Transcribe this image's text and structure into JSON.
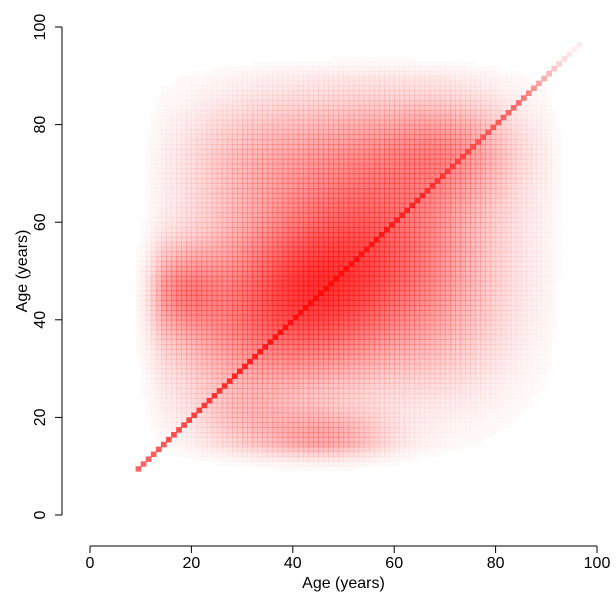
{
  "chart_data": {
    "type": "heatmap",
    "title": "",
    "xlabel": "Age (years)",
    "ylabel": "Age (years)",
    "xlim": [
      0,
      100
    ],
    "ylim": [
      0,
      100
    ],
    "xticks": [
      0,
      20,
      40,
      60,
      80,
      100
    ],
    "yticks": [
      0,
      20,
      40,
      60,
      80,
      100
    ],
    "grid": false,
    "color": "#ff0000",
    "cell_size_years": 1,
    "value_range": [
      0,
      1
    ],
    "density": {
      "diagonal": {
        "from_age": 9,
        "to_age": 97,
        "peak_age": 46,
        "peak_intensity": 0.95
      },
      "blobs": [
        {
          "center": [
            46,
            46
          ],
          "spread": [
            12,
            12
          ],
          "intensity": 0.55
        },
        {
          "center": [
            30,
            40
          ],
          "spread": [
            12,
            12
          ],
          "intensity": 0.3
        },
        {
          "center": [
            60,
            60
          ],
          "spread": [
            14,
            14
          ],
          "intensity": 0.35
        },
        {
          "center": [
            18,
            46
          ],
          "spread": [
            5,
            6
          ],
          "intensity": 0.28
        },
        {
          "center": [
            46,
            16
          ],
          "spread": [
            9,
            4
          ],
          "intensity": 0.28
        },
        {
          "center": [
            72,
            75
          ],
          "spread": [
            9,
            7
          ],
          "intensity": 0.22
        },
        {
          "center": [
            50,
            75
          ],
          "spread": [
            15,
            9
          ],
          "intensity": 0.18
        },
        {
          "center": [
            30,
            72
          ],
          "spread": [
            10,
            9
          ],
          "intensity": 0.14
        },
        {
          "center": [
            70,
            40
          ],
          "spread": [
            10,
            12
          ],
          "intensity": 0.15
        },
        {
          "center": [
            30,
            20
          ],
          "spread": [
            7,
            5
          ],
          "intensity": 0.12
        }
      ]
    }
  }
}
